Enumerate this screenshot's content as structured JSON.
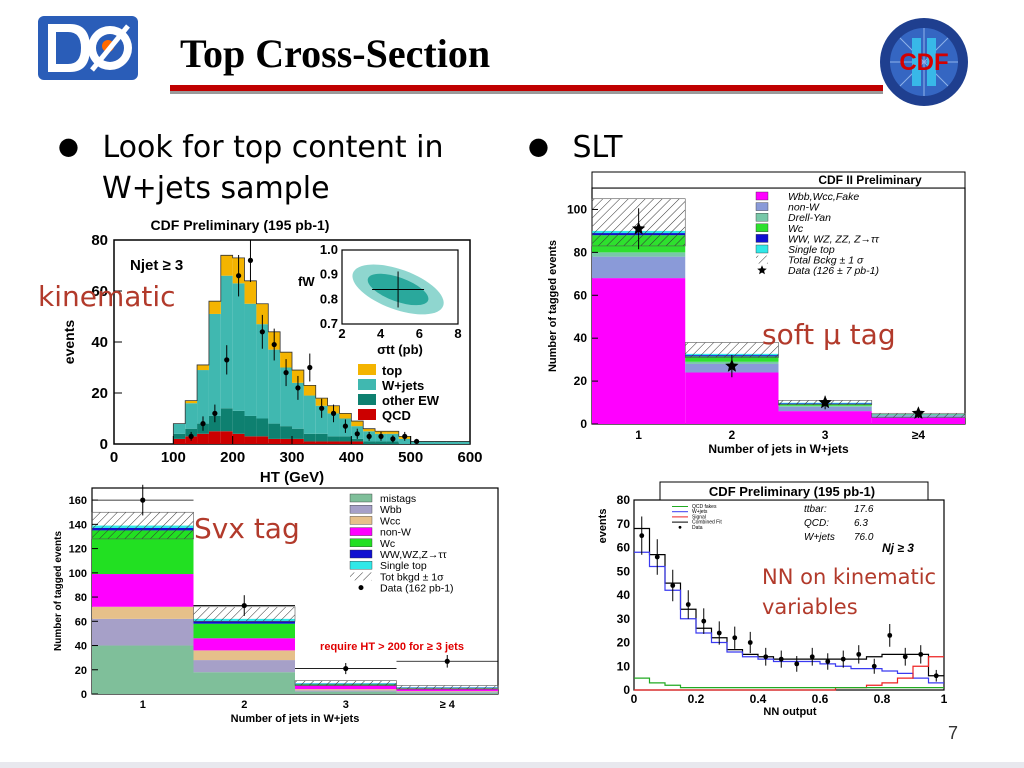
{
  "slide": {
    "title": "Top Cross-Section",
    "bullet_left": [
      "Look for top content in",
      "W+jets sample"
    ],
    "bullet_right": "SLT",
    "note_kinematic": "kinematic",
    "note_soft": "soft μ tag",
    "note_svx": "Svx tag",
    "note_nn": [
      "NN on kinematic",
      "variables"
    ],
    "page_number": "7",
    "logo_left": "DØ",
    "logo_right": "CDF II"
  },
  "chart_data": [
    {
      "id": "ht",
      "type": "bar",
      "title": "CDF Preliminary (195 pb-1)",
      "annotation": "Njet ≥ 3",
      "xlabel": "HT (GeV)",
      "ylabel": "events",
      "xlim": [
        0,
        600
      ],
      "ylim": [
        0,
        80
      ],
      "xticks": [
        0,
        100,
        200,
        300,
        400,
        500,
        600
      ],
      "yticks": [
        0,
        20,
        40,
        60,
        80
      ],
      "bin_edges": [
        100,
        120,
        140,
        160,
        180,
        200,
        220,
        240,
        260,
        280,
        300,
        320,
        340,
        360,
        380,
        400,
        420,
        440,
        460,
        480,
        500,
        520,
        540,
        560,
        580,
        600
      ],
      "series": [
        {
          "name": "QCD",
          "color": "#cc0000",
          "values": [
            2,
            3,
            4,
            5,
            5,
            4,
            3,
            3,
            2,
            2,
            2,
            1,
            1,
            1,
            1,
            1,
            0,
            0,
            0,
            0,
            0,
            0,
            0,
            0,
            0
          ]
        },
        {
          "name": "other EW",
          "color": "#0e8070",
          "values": [
            2,
            3,
            4,
            6,
            9,
            9,
            8,
            7,
            6,
            5,
            4,
            3,
            3,
            2,
            2,
            1,
            1,
            1,
            1,
            0,
            0,
            0,
            0,
            0,
            0
          ]
        },
        {
          "name": "W+jets",
          "color": "#40b8b0",
          "values": [
            4,
            10,
            21,
            40,
            52,
            50,
            44,
            37,
            29,
            23,
            18,
            15,
            11,
            9,
            7,
            5,
            4,
            3,
            3,
            2,
            1,
            1,
            1,
            1,
            1
          ]
        },
        {
          "name": "top",
          "color": "#f4b400",
          "values": [
            0,
            1,
            2,
            5,
            8,
            10,
            9,
            8,
            7,
            6,
            5,
            4,
            3,
            3,
            2,
            2,
            1,
            1,
            1,
            1,
            0,
            0,
            0,
            0,
            0
          ]
        }
      ],
      "data": {
        "name": "Data",
        "x": [
          130,
          150,
          170,
          190,
          210,
          230,
          250,
          270,
          290,
          310,
          330,
          350,
          370,
          390,
          410,
          430,
          450,
          470,
          490,
          510
        ],
        "y": [
          3,
          8,
          12,
          33,
          66,
          72,
          44,
          39,
          28,
          22,
          30,
          14,
          12,
          7,
          4,
          3,
          3,
          2,
          3,
          1
        ]
      },
      "inset": {
        "xlabel": "σtt (pb)",
        "ylabel": "fW",
        "xlim": [
          2,
          8
        ],
        "ylim": [
          0.7,
          1.0
        ],
        "xticks": [
          2,
          4,
          6,
          8
        ],
        "yticks": [
          0.7,
          0.8,
          0.9,
          1.0
        ],
        "center": {
          "x": 4.9,
          "y": 0.84
        }
      },
      "legend": [
        "top",
        "W+jets",
        "other EW",
        "QCD"
      ]
    },
    {
      "id": "slt",
      "type": "bar",
      "title": "CDF II Preliminary",
      "xlabel": "Number of jets in W+jets",
      "ylabel": "Number of tagged events",
      "categories": [
        "1",
        "2",
        "3",
        "≥4"
      ],
      "ylim": [
        0,
        110
      ],
      "yticks": [
        0,
        20,
        40,
        60,
        80,
        100
      ],
      "series": [
        {
          "name": "Wbb,Wcc,Fake",
          "color": "#ff00ff",
          "values": [
            68,
            24,
            6,
            3
          ]
        },
        {
          "name": "non-W",
          "color": "#8a9ad8",
          "values": [
            10,
            4,
            2,
            1
          ]
        },
        {
          "name": "Drell-Yan",
          "color": "#78c8a8",
          "values": [
            2,
            1,
            0.5,
            0.2
          ]
        },
        {
          "name": "Wc",
          "color": "#2ee02e",
          "values": [
            8,
            2.5,
            0.8,
            0.2
          ]
        },
        {
          "name": "WW, WZ, ZZ, Z→ττ",
          "color": "#1010d0",
          "values": [
            1,
            0.6,
            0.3,
            0.1
          ]
        },
        {
          "name": "Single top",
          "color": "#30e8e8",
          "values": [
            1,
            0.6,
            0.3,
            0.1
          ]
        }
      ],
      "legend": [
        "Wbb,Wcc,Fake",
        "non-W",
        "Drell-Yan",
        "Wc",
        "WW, WZ, ZZ, Z→ττ",
        "Single top",
        "Total Bckg ± 1 σ",
        "Data (126 ± 7 pb-1)"
      ],
      "total_band": [
        [
          83,
          105
        ],
        [
          31,
          38
        ],
        [
          9,
          11
        ],
        [
          3,
          5
        ]
      ],
      "data": {
        "name": "Data (126 ± 7 pb-1)",
        "y": [
          91,
          27,
          10,
          5
        ]
      }
    },
    {
      "id": "svx",
      "type": "bar",
      "xlabel": "Number of jets in W+jets",
      "ylabel": "Number of tagged events",
      "categories": [
        "1",
        "2",
        "3",
        "≥ 4"
      ],
      "ylim": [
        0,
        170
      ],
      "yticks": [
        0,
        20,
        40,
        60,
        80,
        100,
        120,
        140,
        160
      ],
      "annotation": "require HT > 200 for ≥ 3 jets",
      "series": [
        {
          "name": "mistags",
          "color": "#7fbf9a",
          "values": [
            40,
            18,
            2,
            1
          ]
        },
        {
          "name": "Wbb",
          "color": "#a6a0c8",
          "values": [
            22,
            10,
            1,
            1
          ]
        },
        {
          "name": "Wcc",
          "color": "#e6c08a",
          "values": [
            10,
            8,
            1,
            0.5
          ]
        },
        {
          "name": "non-W",
          "color": "#ff00ff",
          "values": [
            27,
            10,
            3,
            2
          ]
        },
        {
          "name": "Wc",
          "color": "#22e022",
          "values": [
            36,
            12,
            1,
            0.5
          ]
        },
        {
          "name": "WW,WZ,Z→ττ",
          "color": "#1010d0",
          "values": [
            2,
            2,
            0.5,
            0.3
          ]
        },
        {
          "name": "Single top",
          "color": "#30e8e8",
          "values": [
            2,
            2,
            0.5,
            0.3
          ]
        }
      ],
      "legend": [
        "mistags",
        "Wbb",
        "Wcc",
        "non-W",
        "Wc",
        "WW,WZ,Z→ττ",
        "Single top",
        "Tot bkgd ± 1σ",
        "Data (162 pb-1)"
      ],
      "total_band": [
        [
          128,
          150
        ],
        [
          60,
          72
        ],
        [
          7,
          11
        ],
        [
          4,
          7
        ]
      ],
      "data": {
        "name": "Data (162 pb-1)",
        "y": [
          160,
          73,
          21,
          27
        ]
      }
    },
    {
      "id": "nn",
      "type": "line",
      "title": "CDF Preliminary (195 pb-1)",
      "xlabel": "NN output",
      "ylabel": "events",
      "xlim": [
        0,
        1
      ],
      "ylim": [
        0,
        80
      ],
      "xticks": [
        0,
        0.2,
        0.4,
        0.6,
        0.8,
        1
      ],
      "yticks": [
        0,
        10,
        20,
        30,
        40,
        50,
        60,
        70,
        80
      ],
      "legend": [
        "QCD fakes",
        "W+jets",
        "Signal",
        "Combined Fit",
        "Data"
      ],
      "fit_results": [
        [
          "ttbar:",
          "17.6"
        ],
        [
          "QCD:",
          "6.3"
        ],
        [
          "W+jets",
          "76.0"
        ]
      ],
      "annotation": "Nj ≥ 3",
      "x": [
        0.025,
        0.075,
        0.125,
        0.175,
        0.225,
        0.275,
        0.325,
        0.375,
        0.425,
        0.475,
        0.525,
        0.575,
        0.625,
        0.675,
        0.725,
        0.775,
        0.825,
        0.875,
        0.925,
        0.975
      ],
      "series": [
        {
          "name": "Combined Fit",
          "color": "#000000",
          "values": [
            68,
            57,
            45,
            34,
            26,
            22,
            17,
            15,
            14,
            13,
            13,
            13,
            13,
            13,
            13,
            14,
            15,
            15,
            15,
            6
          ]
        },
        {
          "name": "W+jets",
          "color": "#3a3af0",
          "values": [
            58,
            52,
            42,
            30,
            24,
            20,
            16,
            14,
            13,
            12,
            12,
            12,
            11,
            10,
            9,
            9,
            8,
            7,
            5,
            3
          ]
        },
        {
          "name": "Signal",
          "color": "#ee2222",
          "values": [
            0,
            0,
            0,
            0,
            0,
            0,
            0,
            0,
            0,
            0,
            0,
            0,
            0,
            1,
            1,
            2,
            3,
            5,
            10,
            14
          ]
        },
        {
          "name": "QCD fakes",
          "color": "#22aa22",
          "values": [
            5,
            3,
            2,
            1,
            1,
            1,
            1,
            1,
            1,
            1,
            1,
            1,
            1,
            1,
            1,
            1,
            1,
            1,
            1,
            1
          ]
        }
      ],
      "data": {
        "name": "Data",
        "y": [
          65,
          56,
          44,
          36,
          29,
          24,
          22,
          20,
          14,
          13,
          11,
          14,
          12,
          13,
          15,
          10,
          23,
          14,
          15,
          6
        ]
      }
    }
  ]
}
